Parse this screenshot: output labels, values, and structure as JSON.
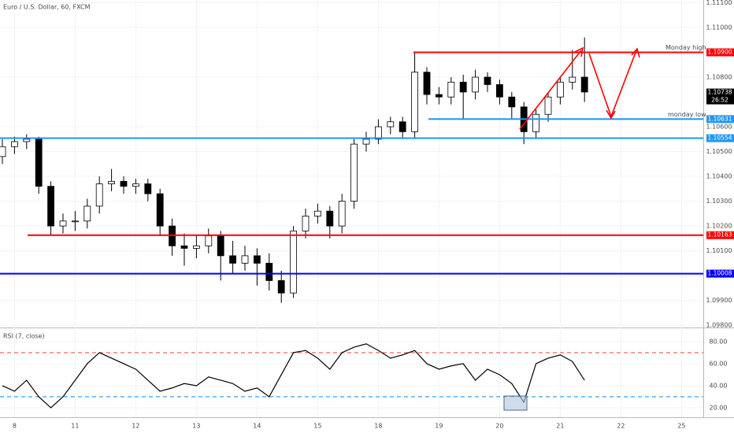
{
  "chart_data": [
    {
      "type": "candlestick",
      "title": "Euro / U.S. Dollar, 60, FXCM",
      "categories": [
        null,
        "8",
        null,
        null,
        null,
        null,
        "11",
        null,
        null,
        null,
        null,
        "12",
        null,
        null,
        null,
        null,
        "13",
        null,
        null,
        null,
        null,
        "14",
        null,
        null,
        null,
        null,
        "15",
        null,
        null,
        null,
        null,
        "18",
        null,
        null,
        null,
        null,
        "19",
        null,
        null,
        null,
        null,
        "20",
        null,
        null,
        null,
        null,
        "21",
        null,
        null,
        null,
        null,
        "22",
        null,
        null,
        null,
        null,
        "25"
      ],
      "open": [
        1.1048,
        1.1052,
        1.1054,
        1.1055,
        1.1036,
        1.102,
        1.1022,
        1.1022,
        1.1028,
        1.1037,
        1.1038,
        1.1036,
        1.1037,
        1.1033,
        1.102,
        1.1012,
        1.1011,
        1.1012,
        1.1016,
        1.1008,
        1.1005,
        1.1008,
        1.1005,
        1.0998,
        1.0993,
        1.1018,
        1.1024,
        1.1026,
        1.102,
        1.103,
        1.1053,
        1.1055,
        1.106,
        1.1062,
        1.1058,
        1.1082,
        1.1073,
        1.1072,
        1.1078,
        1.1074,
        1.108,
        1.1077,
        1.1072,
        1.1068,
        1.1058,
        1.1065,
        1.1072,
        1.1078,
        1.108,
        null,
        null,
        null,
        null,
        null,
        null,
        null,
        null
      ],
      "high": [
        1.1055,
        1.1056,
        1.1057,
        1.1056,
        1.1038,
        1.1025,
        1.1026,
        1.1031,
        1.104,
        1.1043,
        1.104,
        1.1039,
        1.1039,
        1.1035,
        1.1023,
        1.1017,
        1.1016,
        1.1019,
        1.1018,
        1.1014,
        1.1012,
        1.1011,
        1.1009,
        1.1002,
        1.102,
        1.1027,
        1.1029,
        1.1028,
        1.1033,
        1.1055,
        1.1058,
        1.1063,
        1.1064,
        1.1064,
        1.109,
        1.1084,
        1.1076,
        1.108,
        1.1081,
        1.1083,
        1.1082,
        1.1079,
        1.1074,
        1.107,
        1.1067,
        1.1074,
        1.108,
        1.1091,
        1.1096,
        null,
        null,
        null,
        null,
        null,
        null,
        null,
        null
      ],
      "low": [
        1.1045,
        1.1049,
        1.1051,
        1.1033,
        1.1016,
        1.1017,
        1.1018,
        1.1019,
        1.1025,
        1.1034,
        1.1033,
        1.1033,
        1.103,
        1.1016,
        1.1008,
        1.1004,
        1.1007,
        1.1009,
        1.0998,
        1.1001,
        1.1002,
        1.0996,
        1.0994,
        1.0989,
        1.0991,
        1.1015,
        1.1021,
        1.1015,
        1.1017,
        1.1027,
        1.105,
        1.1053,
        1.1057,
        1.1055,
        1.1055,
        1.1069,
        1.1069,
        1.1069,
        1.1063,
        1.1071,
        1.1074,
        1.1069,
        1.1063,
        1.1053,
        1.1055,
        1.1062,
        1.1069,
        1.1075,
        1.107,
        null,
        null,
        null,
        null,
        null,
        null,
        null,
        null
      ],
      "close": [
        1.1052,
        1.1054,
        1.1055,
        1.1036,
        1.102,
        1.1022,
        1.1022,
        1.1028,
        1.1037,
        1.1038,
        1.1036,
        1.1037,
        1.1033,
        1.102,
        1.1012,
        1.1011,
        1.1012,
        1.1016,
        1.1008,
        1.1005,
        1.1008,
        1.1005,
        1.0998,
        1.0993,
        1.1018,
        1.1024,
        1.1026,
        1.102,
        1.103,
        1.1053,
        1.1055,
        1.106,
        1.1062,
        1.1058,
        1.1082,
        1.1073,
        1.1072,
        1.1078,
        1.1074,
        1.108,
        1.1077,
        1.1072,
        1.1068,
        1.1058,
        1.1065,
        1.1072,
        1.1078,
        1.108,
        1.1074,
        null,
        null,
        null,
        null,
        null,
        null,
        null,
        null
      ],
      "ylim": [
        1.09794,
        1.11111
      ],
      "yticks": [
        {
          "value": 1.098,
          "label": "1.09800"
        },
        {
          "value": 1.099,
          "label": "1.09900"
        },
        {
          "value": 1.101,
          "label": "1.10100"
        },
        {
          "value": 1.102,
          "label": "1.10200"
        },
        {
          "value": 1.103,
          "label": "1.10300"
        },
        {
          "value": 1.104,
          "label": "1.10400"
        },
        {
          "value": 1.105,
          "label": "1.10500"
        },
        {
          "value": 1.106,
          "label": "1.10600"
        },
        {
          "value": 1.108,
          "label": "1.10800"
        },
        {
          "value": 1.11,
          "label": "1.11000"
        },
        {
          "value": 1.111,
          "label": "1.11100"
        }
      ],
      "levels": [
        {
          "value": 1.109,
          "label": "1.10900",
          "color": "#ff0000",
          "text": "Monday high"
        },
        {
          "value": 1.10631,
          "label": "1.10631",
          "color": "#2196f3",
          "text": "monday low"
        },
        {
          "value": 1.10554,
          "label": "1.10554",
          "color": "#2196f3"
        },
        {
          "value": 1.10163,
          "label": "1.10163",
          "color": "#ff0000"
        },
        {
          "value": 1.10008,
          "label": "1.10008",
          "color": "#0000ff"
        }
      ],
      "last_price": {
        "value": 1.10738,
        "label": "1.10738",
        "countdown": "26:52"
      },
      "up_color": "#ffffff",
      "down_color": "#000000"
    },
    {
      "type": "line",
      "title": "RSI (7, close)",
      "color": "#000000",
      "values": [
        40,
        35,
        45,
        30,
        20,
        30,
        45,
        60,
        70,
        65,
        60,
        55,
        45,
        35,
        38,
        42,
        40,
        48,
        45,
        42,
        35,
        38,
        30,
        50,
        70,
        72,
        65,
        55,
        70,
        75,
        78,
        72,
        65,
        68,
        72,
        60,
        55,
        58,
        60,
        45,
        55,
        50,
        42,
        25,
        60,
        65,
        68,
        62,
        45,
        null,
        null,
        null,
        null,
        null,
        null,
        null,
        null
      ],
      "ylim": [
        11.4,
        91.4
      ],
      "yticks": [
        {
          "value": 20,
          "label": "20.00"
        },
        {
          "value": 40,
          "label": "40.00"
        },
        {
          "value": 60,
          "label": "60.00"
        },
        {
          "value": 80,
          "label": "80.00"
        }
      ],
      "bands": [
        {
          "value": 70,
          "color": "#ef5350"
        },
        {
          "value": 30,
          "color": "#2196f3"
        }
      ]
    }
  ]
}
